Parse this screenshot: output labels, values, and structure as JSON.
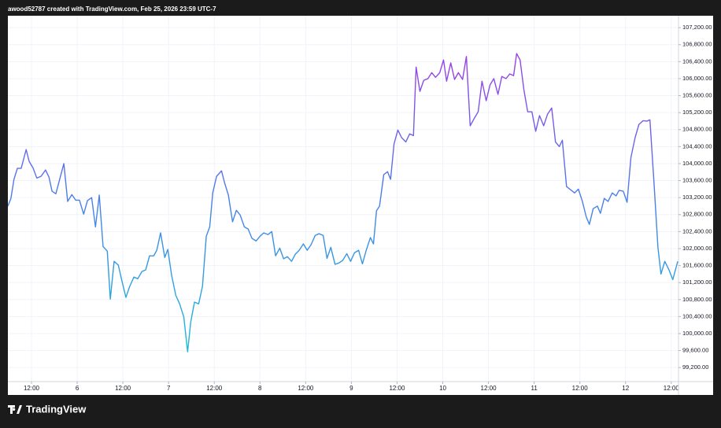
{
  "header_text": "awood52787 created with TradingView.com, Feb 25, 2026 23:59 UTC-7",
  "brand": "TradingView",
  "chart_data": {
    "type": "line",
    "colors": [
      "#b22de6",
      "#4a7fea",
      "#12c8d4"
    ],
    "grid": true,
    "xlim": [
      5.8,
      181.9
    ],
    "ylim": [
      98870,
      107480
    ],
    "xticks": [
      {
        "value": 12,
        "label": "12:00"
      },
      {
        "value": 24,
        "label": "6"
      },
      {
        "value": 36,
        "label": "12:00"
      },
      {
        "value": 48,
        "label": "7"
      },
      {
        "value": 60,
        "label": "12:00"
      },
      {
        "value": 72,
        "label": "8"
      },
      {
        "value": 84,
        "label": "12:00"
      },
      {
        "value": 96,
        "label": "9"
      },
      {
        "value": 108,
        "label": "12:00"
      },
      {
        "value": 120,
        "label": "10"
      },
      {
        "value": 132,
        "label": "12:00"
      },
      {
        "value": 144,
        "label": "11"
      },
      {
        "value": 156,
        "label": "12:00"
      },
      {
        "value": 168,
        "label": "12"
      },
      {
        "value": 180,
        "label": "12:00"
      }
    ],
    "yticks": [
      {
        "value": 99200,
        "label": "99,200.00"
      },
      {
        "value": 99600,
        "label": "99,600.00"
      },
      {
        "value": 100000,
        "label": "100,000.00"
      },
      {
        "value": 100400,
        "label": "100,400.00"
      },
      {
        "value": 100800,
        "label": "100,800.00"
      },
      {
        "value": 101200,
        "label": "101,200.00"
      },
      {
        "value": 101600,
        "label": "101,600.00"
      },
      {
        "value": 102000,
        "label": "102,000.00"
      },
      {
        "value": 102400,
        "label": "102,400.00"
      },
      {
        "value": 102800,
        "label": "102,800.00"
      },
      {
        "value": 103200,
        "label": "103,200.00"
      },
      {
        "value": 103600,
        "label": "103,600.00"
      },
      {
        "value": 104000,
        "label": "104,000.00"
      },
      {
        "value": 104400,
        "label": "104,400.00"
      },
      {
        "value": 104800,
        "label": "104,800.00"
      },
      {
        "value": 105200,
        "label": "105,200.00"
      },
      {
        "value": 105600,
        "label": "105,600.00"
      },
      {
        "value": 106000,
        "label": "106,000.00"
      },
      {
        "value": 106400,
        "label": "106,400.00"
      },
      {
        "value": 106800,
        "label": "106,800.00"
      },
      {
        "value": 107200,
        "label": "107,200.00"
      }
    ],
    "x": [
      5.8,
      6.6,
      7.4,
      8.3,
      9.3,
      10.6,
      11.4,
      12.4,
      13.4,
      14.5,
      15.7,
      16.6,
      17.4,
      18.4,
      19.4,
      20.5,
      21.5,
      22.6,
      23.6,
      24.6,
      25.7,
      26.7,
      27.8,
      28.8,
      29.8,
      30.8,
      31.9,
      32.7,
      33.7,
      34.8,
      35.8,
      36.8,
      37.7,
      38.9,
      39.9,
      41.0,
      42.0,
      43.0,
      44.1,
      44.9,
      45.9,
      47.0,
      47.8,
      48.8,
      49.9,
      50.9,
      52.0,
      53.0,
      53.8,
      54.8,
      55.9,
      56.9,
      57.9,
      58.8,
      59.6,
      60.6,
      61.9,
      62.7,
      63.7,
      64.8,
      65.8,
      66.8,
      67.9,
      68.9,
      69.9,
      71.0,
      72.0,
      73.0,
      74.1,
      75.1,
      76.1,
      77.2,
      78.2,
      79.2,
      80.3,
      81.3,
      82.3,
      83.4,
      84.4,
      85.4,
      86.5,
      87.5,
      88.6,
      89.6,
      90.6,
      91.7,
      92.7,
      93.7,
      94.8,
      95.8,
      96.8,
      97.9,
      98.9,
      99.9,
      101.0,
      101.8,
      102.6,
      103.4,
      104.5,
      105.5,
      106.3,
      107.2,
      108.2,
      109.2,
      110.3,
      111.3,
      112.3,
      113.0,
      114.0,
      115.0,
      116.1,
      117.1,
      118.1,
      119.2,
      120.2,
      121.0,
      122.1,
      123.1,
      124.1,
      125.2,
      126.2,
      127.2,
      128.3,
      129.3,
      130.3,
      131.4,
      132.4,
      133.4,
      134.5,
      135.5,
      136.6,
      137.6,
      138.6,
      139.4,
      140.3,
      141.3,
      142.3,
      143.4,
      144.4,
      145.4,
      146.5,
      147.5,
      148.6,
      149.6,
      150.6,
      151.4,
      152.5,
      153.5,
      154.6,
      155.6,
      156.6,
      157.7,
      158.5,
      159.5,
      160.6,
      161.4,
      162.4,
      163.4,
      164.5,
      165.5,
      166.3,
      167.4,
      168.4,
      169.4,
      170.5,
      171.5,
      172.6,
      173.6,
      174.4,
      175.5,
      176.5,
      177.3,
      178.3,
      179.4,
      180.4,
      181.7
    ],
    "values": [
      103000,
      103180,
      103630,
      103890,
      103890,
      104330,
      104050,
      103900,
      103660,
      103700,
      103850,
      103680,
      103350,
      103290,
      103630,
      104000,
      103110,
      103270,
      103140,
      103140,
      102810,
      103130,
      103200,
      102510,
      103260,
      102050,
      101940,
      100810,
      101700,
      101610,
      101220,
      100850,
      101090,
      101330,
      101290,
      101460,
      101500,
      101830,
      101830,
      101960,
      102370,
      101790,
      101980,
      101370,
      100900,
      100700,
      100390,
      99570,
      100260,
      100740,
      100700,
      101110,
      102290,
      102510,
      103310,
      103700,
      103830,
      103550,
      103260,
      102630,
      102900,
      102790,
      102510,
      102460,
      102240,
      102180,
      102290,
      102370,
      102330,
      102400,
      101830,
      102010,
      101760,
      101810,
      101700,
      101870,
      101960,
      102110,
      101960,
      102090,
      102310,
      102350,
      102310,
      101770,
      102030,
      101630,
      101660,
      101720,
      101880,
      101700,
      101900,
      101960,
      101640,
      101960,
      102260,
      102110,
      102890,
      103000,
      103740,
      103810,
      103630,
      104460,
      104790,
      104610,
      104510,
      104700,
      104660,
      106270,
      105700,
      105960,
      106000,
      106140,
      106030,
      106140,
      106440,
      105940,
      106370,
      105980,
      106140,
      105980,
      106520,
      104890,
      105070,
      105220,
      105940,
      105480,
      105850,
      106000,
      105630,
      106050,
      106000,
      106110,
      106070,
      106590,
      106440,
      105740,
      105220,
      105220,
      104760,
      105130,
      104890,
      105160,
      105310,
      104510,
      104400,
      104550,
      103460,
      103390,
      103310,
      103400,
      103130,
      102740,
      102570,
      102940,
      103000,
      102830,
      103180,
      103110,
      103310,
      103240,
      103370,
      103350,
      103090,
      104140,
      104610,
      104920,
      105010,
      105000,
      105030,
      103500,
      102030,
      101400,
      101700,
      101500,
      101270,
      101700
    ]
  }
}
